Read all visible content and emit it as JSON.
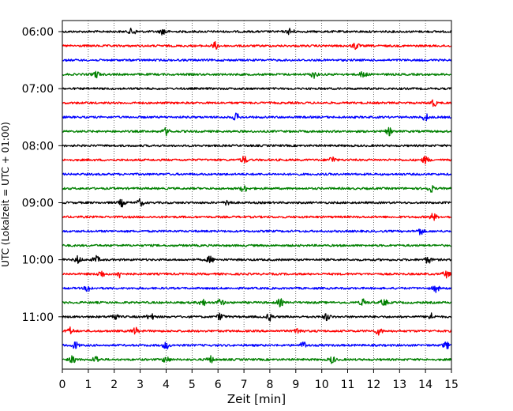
{
  "chart_data": {
    "type": "line",
    "title": "",
    "xlabel": "Zeit  [min]",
    "ylabel": "UTC (Lokalzeit = UTC + 01:00)",
    "xlim": [
      0,
      15
    ],
    "x_ticks": [
      0,
      1,
      2,
      3,
      4,
      5,
      6,
      7,
      8,
      9,
      10,
      11,
      12,
      13,
      14,
      15
    ],
    "grid": "vertical dotted",
    "row_interval_minutes": 15,
    "rows_start": "06:00",
    "row_count": 24,
    "y_ticks": [
      "06:00",
      "07:00",
      "08:00",
      "09:00",
      "10:00",
      "11:00"
    ],
    "row_colors": [
      "#000000",
      "#ff0000",
      "#0000ff",
      "#008000"
    ],
    "rows": [
      {
        "time": "06:00",
        "color": "#000000",
        "events": [
          2.7,
          3.9,
          8.8
        ]
      },
      {
        "time": "06:15",
        "color": "#ff0000",
        "events": [
          5.9,
          11.3
        ]
      },
      {
        "time": "06:30",
        "color": "#0000ff",
        "events": []
      },
      {
        "time": "06:45",
        "color": "#008000",
        "events": [
          1.3,
          9.7,
          11.6
        ]
      },
      {
        "time": "07:00",
        "color": "#000000",
        "events": []
      },
      {
        "time": "07:15",
        "color": "#ff0000",
        "events": [
          14.3
        ]
      },
      {
        "time": "07:30",
        "color": "#0000ff",
        "events": [
          6.7,
          14.0
        ]
      },
      {
        "time": "07:45",
        "color": "#008000",
        "events": [
          4.0,
          12.6
        ]
      },
      {
        "time": "08:00",
        "color": "#000000",
        "events": []
      },
      {
        "time": "08:15",
        "color": "#ff0000",
        "events": [
          7.0,
          10.4,
          14.0
        ]
      },
      {
        "time": "08:30",
        "color": "#0000ff",
        "events": []
      },
      {
        "time": "08:45",
        "color": "#008000",
        "events": [
          7.0,
          14.2
        ]
      },
      {
        "time": "09:00",
        "color": "#000000",
        "events": [
          2.3,
          3.0,
          6.4
        ]
      },
      {
        "time": "09:15",
        "color": "#ff0000",
        "events": [
          14.3
        ]
      },
      {
        "time": "09:30",
        "color": "#0000ff",
        "events": [
          13.8
        ]
      },
      {
        "time": "09:45",
        "color": "#008000",
        "events": []
      },
      {
        "time": "10:00",
        "color": "#000000",
        "events": [
          0.6,
          1.3,
          5.7,
          14.1
        ]
      },
      {
        "time": "10:15",
        "color": "#ff0000",
        "events": [
          1.5,
          2.2,
          14.8
        ]
      },
      {
        "time": "10:30",
        "color": "#0000ff",
        "events": [
          1.0,
          14.4
        ]
      },
      {
        "time": "10:45",
        "color": "#008000",
        "events": [
          5.4,
          6.1,
          8.4,
          11.6,
          12.4
        ]
      },
      {
        "time": "11:00",
        "color": "#000000",
        "events": [
          2.0,
          3.4,
          6.1,
          8.0,
          10.2,
          14.2
        ]
      },
      {
        "time": "11:15",
        "color": "#ff0000",
        "events": [
          0.3,
          2.8,
          9.1,
          12.2
        ]
      },
      {
        "time": "11:30",
        "color": "#0000ff",
        "events": [
          0.5,
          4.0,
          9.3,
          14.8
        ]
      },
      {
        "time": "11:45",
        "color": "#008000",
        "events": [
          0.4,
          1.3,
          4.0,
          5.7,
          10.4
        ]
      }
    ]
  }
}
